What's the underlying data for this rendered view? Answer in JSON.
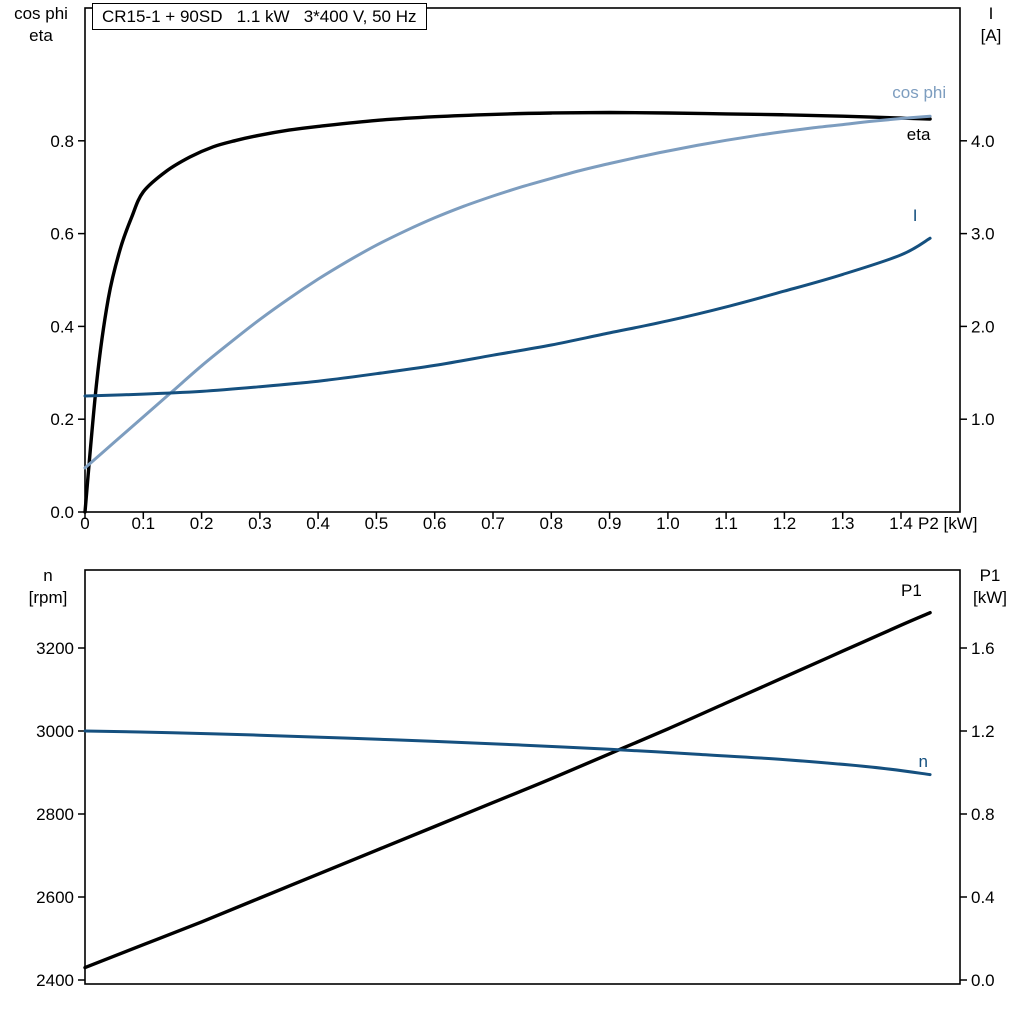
{
  "axis_corner_labels": {
    "upper_left": {
      "line1": "cos phi",
      "line2": "eta"
    },
    "upper_right": {
      "line1": "I",
      "line2": "[A]"
    },
    "lower_left": {
      "line1": "n",
      "line2": "[rpm]"
    },
    "lower_right": {
      "line1": "P1",
      "line2": "[kW]"
    }
  },
  "colors": {
    "eta": "#000000",
    "cos_phi": "#7d9dbf",
    "current": "#15507f",
    "p1": "#000000",
    "speed": "#15507f"
  },
  "chart_data": [
    {
      "type": "line",
      "title": "CR15-1 + 90SD   1.1 kW   3*400 V, 50 Hz",
      "x_axis": {
        "unit_label": "P2 [kW]",
        "range": [
          0,
          1.5
        ],
        "ticks": [
          "0",
          "0.1",
          "0.2",
          "0.3",
          "0.4",
          "0.5",
          "0.6",
          "0.7",
          "0.8",
          "0.9",
          "1.0",
          "1.1",
          "1.2",
          "1.3",
          "1.4"
        ]
      },
      "y_left": {
        "name": "cos phi / eta",
        "range": [
          0,
          1.09
        ],
        "ticks": [
          "0.0",
          "0.2",
          "0.4",
          "0.6",
          "0.8"
        ]
      },
      "y_right": {
        "name": "I [A]",
        "range": [
          0,
          5.43
        ],
        "ticks": [
          "1.0",
          "2.0",
          "3.0",
          "4.0"
        ]
      },
      "grid": false,
      "series": [
        {
          "name": "eta",
          "axis": "left",
          "color_key": "eta",
          "label": {
            "text": "eta",
            "x": 1.41,
            "y": 0.815
          },
          "points": [
            [
              0,
              0
            ],
            [
              0.02,
              0.28
            ],
            [
              0.04,
              0.46
            ],
            [
              0.06,
              0.565
            ],
            [
              0.08,
              0.635
            ],
            [
              0.1,
              0.69
            ],
            [
              0.14,
              0.735
            ],
            [
              0.18,
              0.765
            ],
            [
              0.22,
              0.787
            ],
            [
              0.26,
              0.801
            ],
            [
              0.3,
              0.812
            ],
            [
              0.35,
              0.823
            ],
            [
              0.4,
              0.831
            ],
            [
              0.5,
              0.844
            ],
            [
              0.6,
              0.852
            ],
            [
              0.7,
              0.857
            ],
            [
              0.8,
              0.86
            ],
            [
              0.9,
              0.861
            ],
            [
              1.0,
              0.86
            ],
            [
              1.1,
              0.858
            ],
            [
              1.2,
              0.856
            ],
            [
              1.3,
              0.853
            ],
            [
              1.4,
              0.849
            ],
            [
              1.45,
              0.847
            ]
          ]
        },
        {
          "name": "cos phi",
          "axis": "left",
          "color_key": "cos_phi",
          "label": {
            "text": "cos phi",
            "x": 1.385,
            "y": 0.905
          },
          "points": [
            [
              0,
              0.095
            ],
            [
              0.05,
              0.15
            ],
            [
              0.1,
              0.205
            ],
            [
              0.15,
              0.26
            ],
            [
              0.2,
              0.315
            ],
            [
              0.25,
              0.366
            ],
            [
              0.3,
              0.415
            ],
            [
              0.35,
              0.46
            ],
            [
              0.4,
              0.502
            ],
            [
              0.45,
              0.54
            ],
            [
              0.5,
              0.575
            ],
            [
              0.55,
              0.606
            ],
            [
              0.6,
              0.634
            ],
            [
              0.65,
              0.659
            ],
            [
              0.7,
              0.681
            ],
            [
              0.75,
              0.701
            ],
            [
              0.8,
              0.719
            ],
            [
              0.85,
              0.736
            ],
            [
              0.9,
              0.751
            ],
            [
              0.95,
              0.765
            ],
            [
              1.0,
              0.778
            ],
            [
              1.05,
              0.79
            ],
            [
              1.1,
              0.801
            ],
            [
              1.15,
              0.811
            ],
            [
              1.2,
              0.82
            ],
            [
              1.25,
              0.828
            ],
            [
              1.3,
              0.835
            ],
            [
              1.35,
              0.842
            ],
            [
              1.4,
              0.848
            ],
            [
              1.45,
              0.853
            ]
          ]
        },
        {
          "name": "I",
          "axis": "right",
          "color_key": "current",
          "label": {
            "text": "I",
            "x": 1.42,
            "y": 3.2
          },
          "points": [
            [
              0,
              1.25
            ],
            [
              0.1,
              1.27
            ],
            [
              0.2,
              1.3
            ],
            [
              0.3,
              1.35
            ],
            [
              0.4,
              1.41
            ],
            [
              0.5,
              1.49
            ],
            [
              0.6,
              1.58
            ],
            [
              0.7,
              1.69
            ],
            [
              0.8,
              1.8
            ],
            [
              0.9,
              1.93
            ],
            [
              1.0,
              2.06
            ],
            [
              1.1,
              2.21
            ],
            [
              1.2,
              2.38
            ],
            [
              1.3,
              2.56
            ],
            [
              1.4,
              2.77
            ],
            [
              1.45,
              2.95
            ]
          ]
        }
      ]
    },
    {
      "type": "line",
      "title": "",
      "x_axis": {
        "unit_label": "",
        "range": [
          0,
          1.5
        ],
        "ticks": []
      },
      "y_left": {
        "name": "n [rpm]",
        "range": [
          2390,
          3388
        ],
        "ticks": [
          "2400",
          "2600",
          "2800",
          "3000",
          "3200"
        ]
      },
      "y_right": {
        "name": "P1 [kW]",
        "range": [
          0,
          1.98
        ],
        "ticks": [
          "0.0",
          "0.4",
          "0.8",
          "1.2",
          "1.6"
        ]
      },
      "grid": false,
      "series": [
        {
          "name": "P1",
          "axis": "right",
          "color_key": "p1",
          "label": {
            "text": "P1",
            "x": 1.4,
            "y": 1.88
          },
          "points": [
            [
              0,
              0.06
            ],
            [
              0.1,
              0.17
            ],
            [
              0.2,
              0.28
            ],
            [
              0.3,
              0.395
            ],
            [
              0.4,
              0.51
            ],
            [
              0.5,
              0.625
            ],
            [
              0.6,
              0.74
            ],
            [
              0.7,
              0.855
            ],
            [
              0.8,
              0.97
            ],
            [
              0.9,
              1.09
            ],
            [
              1.0,
              1.21
            ],
            [
              1.1,
              1.335
            ],
            [
              1.2,
              1.46
            ],
            [
              1.3,
              1.585
            ],
            [
              1.4,
              1.71
            ],
            [
              1.45,
              1.77
            ]
          ]
        },
        {
          "name": "n",
          "axis": "left",
          "color_key": "speed",
          "label": {
            "text": "n",
            "x": 1.43,
            "y": 2928
          },
          "points": [
            [
              0,
              3000
            ],
            [
              0.15,
              2996
            ],
            [
              0.3,
              2990
            ],
            [
              0.45,
              2983
            ],
            [
              0.6,
              2975
            ],
            [
              0.75,
              2966
            ],
            [
              0.9,
              2956
            ],
            [
              1.05,
              2944
            ],
            [
              1.2,
              2931
            ],
            [
              1.35,
              2913
            ],
            [
              1.45,
              2895
            ]
          ]
        }
      ]
    }
  ]
}
